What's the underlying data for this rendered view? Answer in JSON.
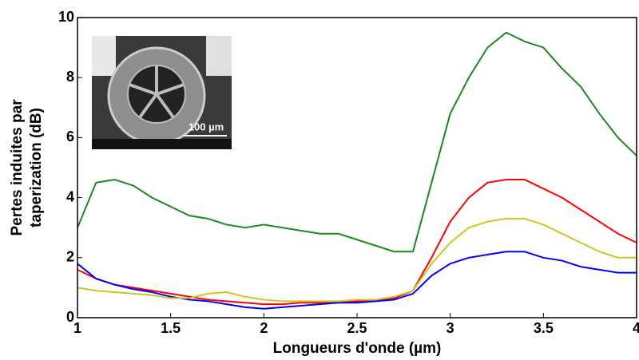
{
  "chart_data": {
    "type": "line",
    "xlabel": "Longueurs d'onde (µm)",
    "ylabel": [
      "Pertes induites par",
      "taperization (dB)"
    ],
    "xlim": [
      1,
      4
    ],
    "xticks": [
      1,
      1.5,
      2,
      2.5,
      3,
      3.5,
      4
    ],
    "ylim": [
      0,
      10
    ],
    "yticks": [
      0,
      2,
      4,
      6,
      8,
      10
    ],
    "grid": false,
    "inset": {
      "scale_label": "100 µm"
    },
    "x": [
      1.0,
      1.1,
      1.2,
      1.3,
      1.4,
      1.5,
      1.6,
      1.7,
      1.8,
      1.9,
      2.0,
      2.1,
      2.2,
      2.3,
      2.4,
      2.5,
      2.6,
      2.7,
      2.8,
      2.9,
      3.0,
      3.1,
      3.2,
      3.3,
      3.4,
      3.5,
      3.6,
      3.7,
      3.8,
      3.9,
      4.0
    ],
    "series": [
      {
        "color": "#1a8a1a",
        "values": [
          3.0,
          4.5,
          4.6,
          4.4,
          4.0,
          3.7,
          3.4,
          3.3,
          3.1,
          3.0,
          3.1,
          3.0,
          2.9,
          2.8,
          2.8,
          2.6,
          2.4,
          2.2,
          2.2,
          4.5,
          6.8,
          8.0,
          9.0,
          9.5,
          9.2,
          9.0,
          8.3,
          7.7,
          6.8,
          6.0,
          5.4
        ]
      },
      {
        "color": "#ff0000",
        "values": [
          1.6,
          1.3,
          1.1,
          1.0,
          0.9,
          0.8,
          0.7,
          0.6,
          0.55,
          0.5,
          0.45,
          0.45,
          0.5,
          0.5,
          0.5,
          0.55,
          0.55,
          0.65,
          0.9,
          2.0,
          3.2,
          4.0,
          4.5,
          4.6,
          4.6,
          4.3,
          4.0,
          3.6,
          3.2,
          2.8,
          2.5
        ]
      },
      {
        "color": "#0000ff",
        "values": [
          1.8,
          1.3,
          1.1,
          0.95,
          0.85,
          0.7,
          0.6,
          0.55,
          0.45,
          0.35,
          0.3,
          0.35,
          0.4,
          0.45,
          0.5,
          0.5,
          0.55,
          0.6,
          0.8,
          1.4,
          1.8,
          2.0,
          2.1,
          2.2,
          2.2,
          2.0,
          1.9,
          1.7,
          1.6,
          1.5,
          1.5
        ]
      },
      {
        "color": "#c8c81e",
        "values": [
          1.0,
          0.9,
          0.85,
          0.8,
          0.75,
          0.65,
          0.65,
          0.8,
          0.85,
          0.7,
          0.6,
          0.55,
          0.55,
          0.55,
          0.55,
          0.6,
          0.6,
          0.7,
          0.9,
          1.8,
          2.5,
          3.0,
          3.2,
          3.3,
          3.3,
          3.1,
          2.8,
          2.5,
          2.2,
          2.0,
          2.0
        ]
      }
    ]
  }
}
